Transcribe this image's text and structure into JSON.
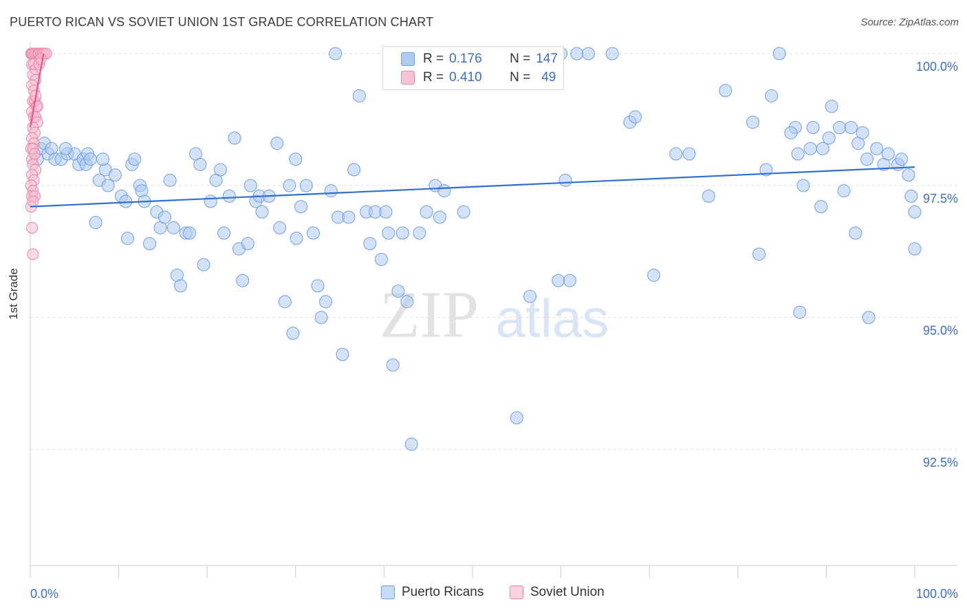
{
  "title": "PUERTO RICAN VS SOVIET UNION 1ST GRADE CORRELATION CHART",
  "source": "Source: ZipAtlas.com",
  "watermark": {
    "zip": "ZIP",
    "atlas": "atlas"
  },
  "colors": {
    "blue_fill": "#aecbf0",
    "blue_stroke": "#6f9fe0",
    "blue_line": "#2f6fd0",
    "pink_fill": "#f6b9cc",
    "pink_stroke": "#ea86a6",
    "pink_line": "#e8558a",
    "axis_text": "#3a6fc4",
    "grid": "#dddddd"
  },
  "legend": {
    "rows": [
      {
        "r_label": "R =",
        "r_value": "0.176",
        "n_label": "N =",
        "n_value": "147"
      },
      {
        "r_label": "R =",
        "r_value": "0.410",
        "n_label": "N =",
        "n_value": "49"
      }
    ]
  },
  "bottom_legend": [
    "Puerto Ricans",
    "Soviet Union"
  ],
  "chart_data": {
    "type": "scatter",
    "title": "PUERTO RICAN VS SOVIET UNION 1ST GRADE CORRELATION CHART",
    "xlabel": "",
    "ylabel": "1st Grade",
    "xlim": [
      0,
      100
    ],
    "ylim": [
      90.0,
      100.25
    ],
    "x_tick_labels": [
      "0.0%",
      "100.0%"
    ],
    "y_ticks": [
      92.5,
      95.0,
      97.5,
      100.0
    ],
    "y_tick_labels": [
      "92.5%",
      "95.0%",
      "97.5%",
      "100.0%"
    ],
    "grid": true,
    "series": [
      {
        "name": "Puerto Ricans",
        "r": 0.176,
        "n": 147,
        "trend": {
          "x": [
            0,
            100
          ],
          "y": [
            97.1,
            97.85
          ]
        },
        "points": [
          [
            0.8,
            98.0
          ],
          [
            1.2,
            98.2
          ],
          [
            1.6,
            98.3
          ],
          [
            2.0,
            98.1
          ],
          [
            2.4,
            98.2
          ],
          [
            2.8,
            98.0
          ],
          [
            3.5,
            98.0
          ],
          [
            4.2,
            98.1
          ],
          [
            5.0,
            98.1
          ],
          [
            5.5,
            97.9
          ],
          [
            6.0,
            98.0
          ],
          [
            6.3,
            97.9
          ],
          [
            6.5,
            98.1
          ],
          [
            6.8,
            98.0
          ],
          [
            7.4,
            96.8
          ],
          [
            7.8,
            97.6
          ],
          [
            8.5,
            97.8
          ],
          [
            8.8,
            97.5
          ],
          [
            9.6,
            97.7
          ],
          [
            10.3,
            97.3
          ],
          [
            10.8,
            97.2
          ],
          [
            11.0,
            96.5
          ],
          [
            11.5,
            97.9
          ],
          [
            11.8,
            98.0
          ],
          [
            12.4,
            97.5
          ],
          [
            12.6,
            97.4
          ],
          [
            12.9,
            97.2
          ],
          [
            13.5,
            96.4
          ],
          [
            14.3,
            97.0
          ],
          [
            14.7,
            96.7
          ],
          [
            15.2,
            96.9
          ],
          [
            15.8,
            97.6
          ],
          [
            16.2,
            96.7
          ],
          [
            16.6,
            95.8
          ],
          [
            17.0,
            95.6
          ],
          [
            17.6,
            96.6
          ],
          [
            18.0,
            96.6
          ],
          [
            18.7,
            98.1
          ],
          [
            19.2,
            97.9
          ],
          [
            19.6,
            96.0
          ],
          [
            20.4,
            97.2
          ],
          [
            21.0,
            97.6
          ],
          [
            21.5,
            97.8
          ],
          [
            21.9,
            96.6
          ],
          [
            22.5,
            97.3
          ],
          [
            23.1,
            98.4
          ],
          [
            23.6,
            96.3
          ],
          [
            24.0,
            95.7
          ],
          [
            24.6,
            96.4
          ],
          [
            24.9,
            97.5
          ],
          [
            25.5,
            97.2
          ],
          [
            25.9,
            97.3
          ],
          [
            26.2,
            97.0
          ],
          [
            27.0,
            97.3
          ],
          [
            27.9,
            98.3
          ],
          [
            28.2,
            96.7
          ],
          [
            28.8,
            95.3
          ],
          [
            29.3,
            97.5
          ],
          [
            29.7,
            94.7
          ],
          [
            30.1,
            96.5
          ],
          [
            30.6,
            97.1
          ],
          [
            31.2,
            97.5
          ],
          [
            32.0,
            96.6
          ],
          [
            32.5,
            95.6
          ],
          [
            32.9,
            95.0
          ],
          [
            33.4,
            95.3
          ],
          [
            34.0,
            97.4
          ],
          [
            34.5,
            100.0
          ],
          [
            34.8,
            96.9
          ],
          [
            35.3,
            94.3
          ],
          [
            36.0,
            96.9
          ],
          [
            36.6,
            97.8
          ],
          [
            37.2,
            99.2
          ],
          [
            38.0,
            97.0
          ],
          [
            38.4,
            96.4
          ],
          [
            39.0,
            97.0
          ],
          [
            39.7,
            96.1
          ],
          [
            40.2,
            97.0
          ],
          [
            40.5,
            96.6
          ],
          [
            41.0,
            94.1
          ],
          [
            41.6,
            95.5
          ],
          [
            42.1,
            96.6
          ],
          [
            42.6,
            95.3
          ],
          [
            43.1,
            92.6
          ],
          [
            44.0,
            96.6
          ],
          [
            44.8,
            97.0
          ],
          [
            45.4,
            99.7
          ],
          [
            45.8,
            97.5
          ],
          [
            46.3,
            96.9
          ],
          [
            46.8,
            97.4
          ],
          [
            47.8,
            100.0
          ],
          [
            49.0,
            97.0
          ],
          [
            50.3,
            100.0
          ],
          [
            51.0,
            100.0
          ],
          [
            54.3,
            100.0
          ],
          [
            55.0,
            93.1
          ],
          [
            56.5,
            95.4
          ],
          [
            58.5,
            100.0
          ],
          [
            59.7,
            95.7
          ],
          [
            60.5,
            97.6
          ],
          [
            61.0,
            95.7
          ],
          [
            61.8,
            100.0
          ],
          [
            63.1,
            100.0
          ],
          [
            67.8,
            98.7
          ],
          [
            68.4,
            98.8
          ],
          [
            70.5,
            95.8
          ],
          [
            73.0,
            98.1
          ],
          [
            74.5,
            98.1
          ],
          [
            76.7,
            97.3
          ],
          [
            78.6,
            99.3
          ],
          [
            81.7,
            98.7
          ],
          [
            82.4,
            96.2
          ],
          [
            83.2,
            97.8
          ],
          [
            83.8,
            99.2
          ],
          [
            84.7,
            100.0
          ],
          [
            86.5,
            98.6
          ],
          [
            86.8,
            98.1
          ],
          [
            87.0,
            95.1
          ],
          [
            87.4,
            97.5
          ],
          [
            88.2,
            98.2
          ],
          [
            88.5,
            98.6
          ],
          [
            89.4,
            97.1
          ],
          [
            89.6,
            98.2
          ],
          [
            90.3,
            98.4
          ],
          [
            90.6,
            99.0
          ],
          [
            91.5,
            98.6
          ],
          [
            92.0,
            97.4
          ],
          [
            92.8,
            98.6
          ],
          [
            93.3,
            96.6
          ],
          [
            93.6,
            98.3
          ],
          [
            94.1,
            98.5
          ],
          [
            94.6,
            98.0
          ],
          [
            94.8,
            95.0
          ],
          [
            95.7,
            98.2
          ],
          [
            96.5,
            97.9
          ],
          [
            97.0,
            98.1
          ],
          [
            98.1,
            97.9
          ],
          [
            98.5,
            98.0
          ],
          [
            99.3,
            97.7
          ],
          [
            99.6,
            97.3
          ],
          [
            100.0,
            96.3
          ],
          [
            100.0,
            97.0
          ],
          [
            4.0,
            98.2
          ],
          [
            8.2,
            98.0
          ],
          [
            60.0,
            100.0
          ],
          [
            30.0,
            98.0
          ],
          [
            65.8,
            100.0
          ],
          [
            47.0,
            100.0
          ],
          [
            86.0,
            98.5
          ]
        ]
      },
      {
        "name": "Soviet Union",
        "r": 0.41,
        "n": 49,
        "trend": {
          "x": [
            0,
            1.5
          ],
          "y": [
            98.6,
            100.0
          ]
        },
        "points": [
          [
            0.1,
            100.0
          ],
          [
            0.2,
            100.0
          ],
          [
            0.3,
            100.0
          ],
          [
            0.5,
            100.0
          ],
          [
            0.7,
            100.0
          ],
          [
            0.9,
            100.0
          ],
          [
            1.0,
            100.0
          ],
          [
            1.2,
            100.0
          ],
          [
            1.4,
            100.0
          ],
          [
            1.6,
            100.0
          ],
          [
            1.8,
            100.0
          ],
          [
            0.2,
            99.8
          ],
          [
            0.4,
            99.8
          ],
          [
            0.6,
            99.7
          ],
          [
            1.0,
            99.8
          ],
          [
            1.2,
            99.9
          ],
          [
            0.3,
            99.6
          ],
          [
            0.6,
            99.5
          ],
          [
            0.2,
            99.4
          ],
          [
            0.4,
            99.3
          ],
          [
            0.3,
            99.1
          ],
          [
            0.5,
            99.1
          ],
          [
            0.7,
            99.0
          ],
          [
            0.2,
            98.9
          ],
          [
            0.4,
            98.8
          ],
          [
            0.6,
            98.8
          ],
          [
            0.8,
            98.7
          ],
          [
            0.3,
            98.6
          ],
          [
            0.5,
            98.5
          ],
          [
            0.2,
            98.4
          ],
          [
            0.4,
            98.3
          ],
          [
            0.1,
            98.2
          ],
          [
            0.3,
            98.2
          ],
          [
            0.2,
            98.0
          ],
          [
            0.5,
            98.1
          ],
          [
            0.3,
            97.9
          ],
          [
            0.6,
            97.8
          ],
          [
            0.2,
            97.7
          ],
          [
            0.4,
            97.6
          ],
          [
            0.1,
            97.5
          ],
          [
            0.3,
            97.4
          ],
          [
            0.2,
            97.3
          ],
          [
            0.5,
            97.3
          ],
          [
            0.1,
            97.1
          ],
          [
            0.3,
            97.2
          ],
          [
            0.2,
            96.7
          ],
          [
            0.3,
            96.2
          ],
          [
            0.6,
            99.2
          ],
          [
            0.8,
            99.0
          ]
        ]
      }
    ]
  }
}
